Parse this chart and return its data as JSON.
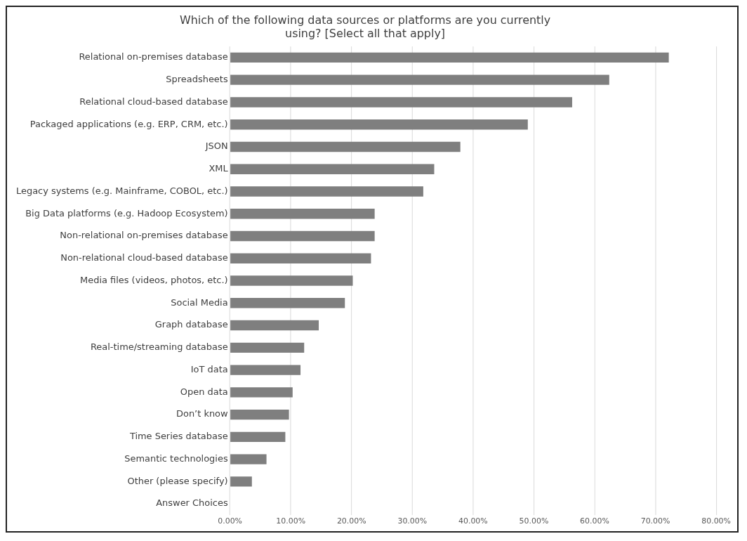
{
  "chart_data": {
    "type": "bar",
    "orientation": "horizontal",
    "title": "Which of the following data sources or platforms are you currently using? [Select all that apply]",
    "categories": [
      "Relational on-premises database",
      "Spreadsheets",
      "Relational cloud-based database",
      "Packaged applications (e.g. ERP, CRM, etc.)",
      "JSON",
      "XML",
      "Legacy systems (e.g. Mainframe, COBOL, etc.)",
      "Big Data platforms (e.g. Hadoop Ecosystem)",
      "Non-relational on-premises database",
      "Non-relational cloud-based database",
      "Media files (videos, photos, etc.)",
      "Social Media",
      "Graph database",
      "Real-time/streaming database",
      "IoT data",
      "Open data",
      "Don’t know",
      "Time Series database",
      "Semantic technologies",
      "Other (please specify)",
      "Answer Choices"
    ],
    "values": [
      72.2,
      62.4,
      56.3,
      49.0,
      37.9,
      33.6,
      31.8,
      23.8,
      23.8,
      23.2,
      20.2,
      18.9,
      14.6,
      12.2,
      11.6,
      10.3,
      9.7,
      9.1,
      6.0,
      3.6,
      0
    ],
    "color": "#7f7f7f",
    "xlim": [
      0,
      80
    ],
    "xticks": [
      {
        "value": 0,
        "label": "0.00%"
      },
      {
        "value": 10,
        "label": "10.00%"
      },
      {
        "value": 20,
        "label": "20.00%"
      },
      {
        "value": 30,
        "label": "30.00%"
      },
      {
        "value": 40,
        "label": "40.00%"
      },
      {
        "value": 50,
        "label": "50.00%"
      },
      {
        "value": 60,
        "label": "60.00%"
      },
      {
        "value": 70,
        "label": "70.00%"
      },
      {
        "value": 80,
        "label": "80.00%"
      }
    ],
    "grid": "x",
    "legend": false
  }
}
